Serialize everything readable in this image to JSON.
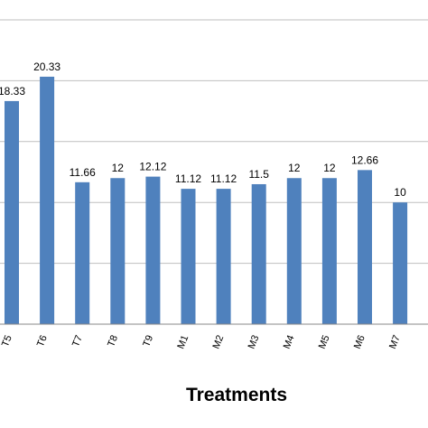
{
  "chart_data": {
    "type": "bar",
    "title": "",
    "xlabel": "Treatments",
    "ylabel": "",
    "categories": [
      "T5",
      "T6",
      "T7",
      "T8",
      "T9",
      "M1",
      "M2",
      "M3",
      "M4",
      "M5",
      "M6",
      "M7"
    ],
    "series": [
      {
        "values": [
          18.33,
          20.33,
          11.66,
          12,
          12.12,
          11.12,
          11.12,
          11.5,
          12,
          12,
          12.66,
          10
        ],
        "labels": [
          "18.33",
          "20.33",
          "11.66",
          "12",
          "12.12",
          "11.12",
          "11.12",
          "11.5",
          "12",
          "12",
          "12.66",
          "10"
        ]
      }
    ],
    "ylim": [
      0,
      25
    ],
    "gridlines": [
      0,
      5,
      10,
      15,
      20,
      25
    ],
    "grid": true,
    "bar_color": "#4f81bd",
    "gridline_color": "#bfbfbf",
    "axis_color": "#888888"
  }
}
